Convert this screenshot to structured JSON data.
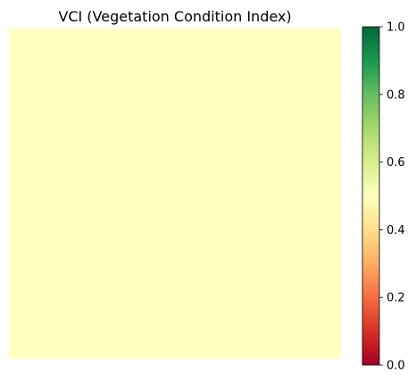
{
  "chart_data": {
    "type": "heatmap",
    "title": "VCI (Vegetation Condition Index)",
    "value": 0.5,
    "cell_color": "#ffffbf",
    "axes_visible": false,
    "colorbar": {
      "label": "",
      "vmin": 0.0,
      "vmax": 1.0,
      "colormap": "RdYlGn",
      "ticks": [
        0.0,
        0.2,
        0.4,
        0.6,
        0.8,
        1.0
      ],
      "tick_labels": [
        "0.0",
        "0.2",
        "0.4",
        "0.6",
        "0.8",
        "1.0"
      ],
      "colormap_stops": [
        "#a50026",
        "#d73027",
        "#f46d43",
        "#fdae61",
        "#fee08b",
        "#ffffbf",
        "#d9ef8b",
        "#a6d96a",
        "#66bd63",
        "#1a9850",
        "#006837"
      ]
    }
  }
}
